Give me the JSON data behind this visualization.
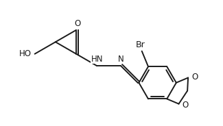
{
  "bg_color": "#ffffff",
  "line_color": "#1a1a1a",
  "line_width": 1.4,
  "font_size": 8.5,
  "figsize": [
    3.25,
    1.84
  ],
  "dpi": 100,
  "xlim": [
    0,
    9.5
  ],
  "ylim": [
    0,
    5.5
  ]
}
